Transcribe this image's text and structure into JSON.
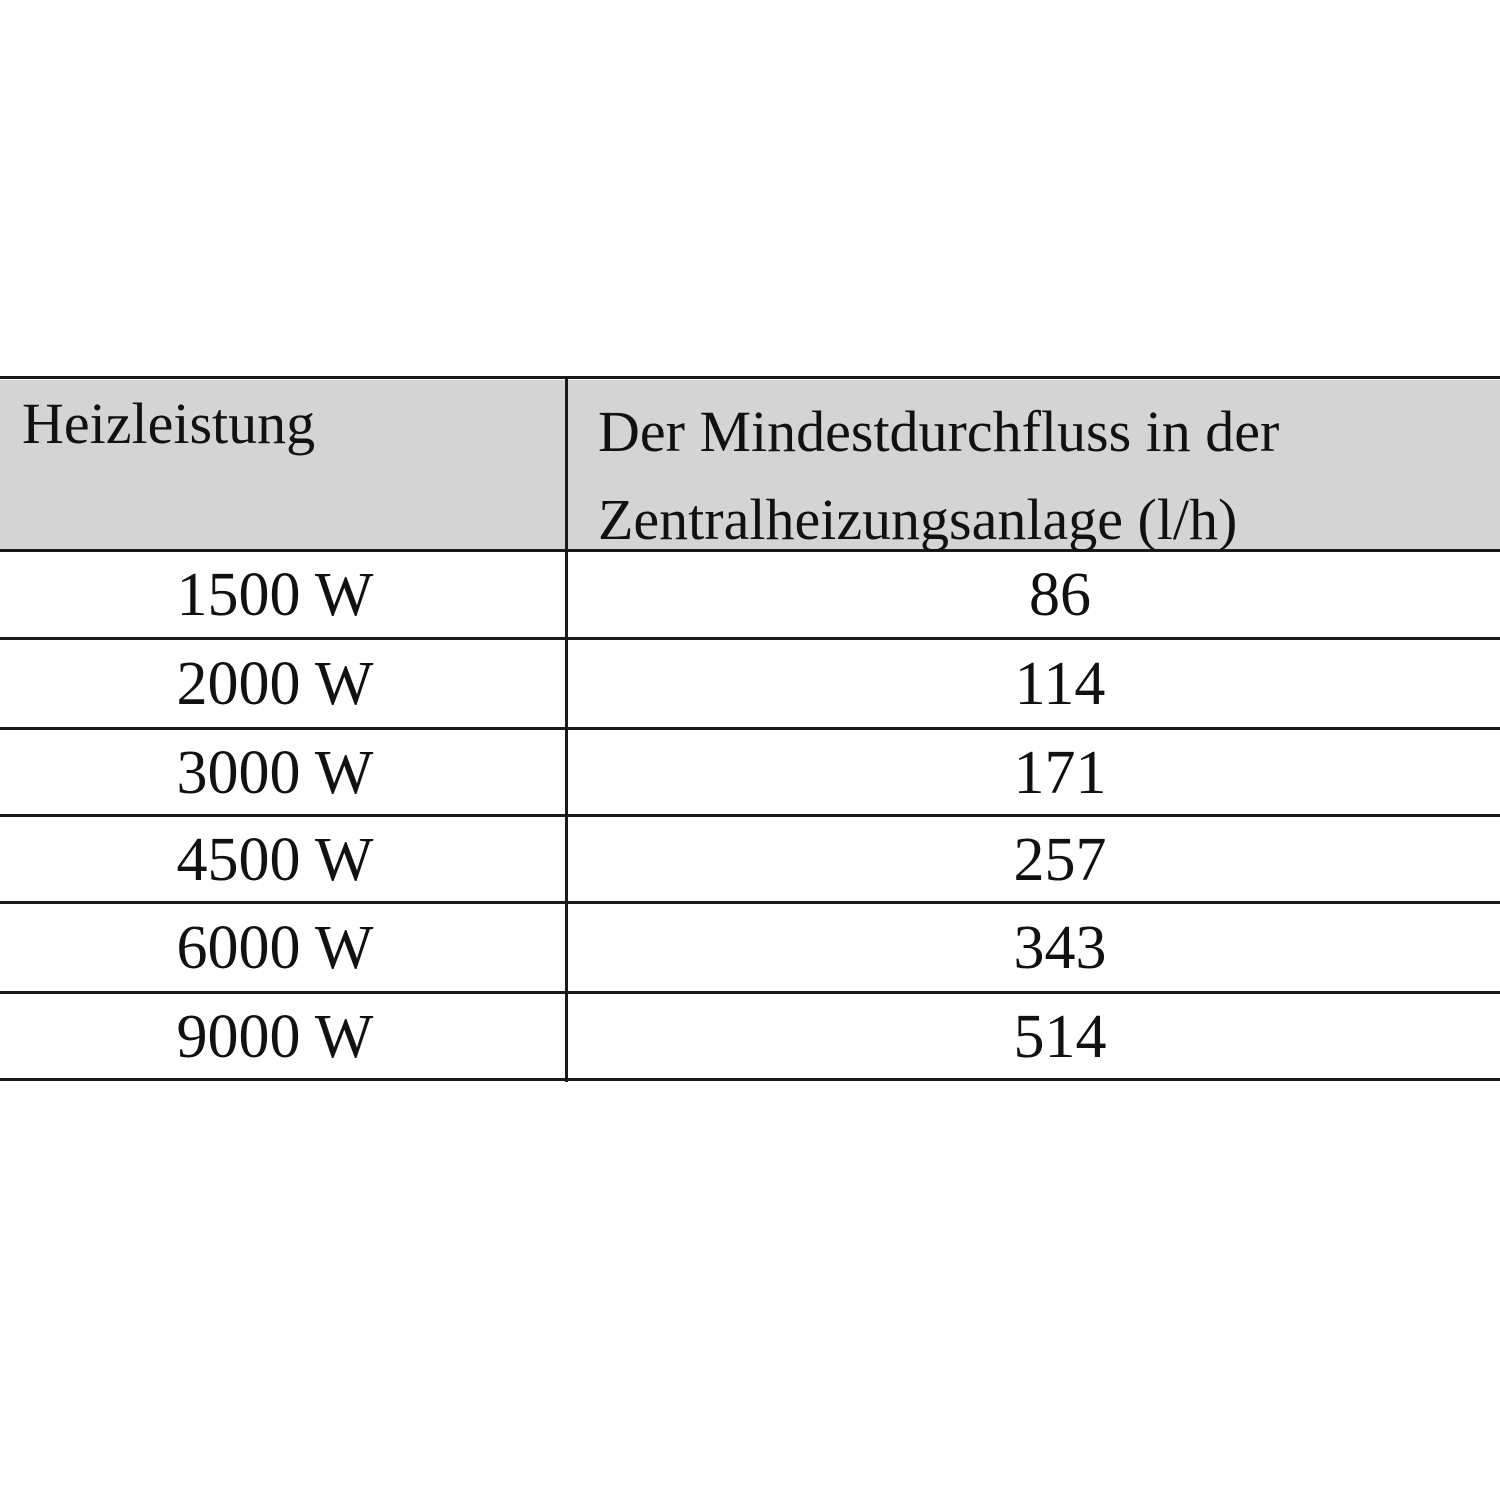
{
  "table": {
    "headers": [
      "Heizleistung",
      "Der Mindestdurchfluss in der Zentralheizungsanlage (l/h)"
    ],
    "rows": [
      [
        "1500 W",
        "86"
      ],
      [
        "2000 W",
        "114"
      ],
      [
        "3000 W",
        "171"
      ],
      [
        "4500 W",
        "257"
      ],
      [
        "6000 W",
        "343"
      ],
      [
        "9000 W",
        "514"
      ]
    ],
    "header_background": "#d4d4d4"
  }
}
